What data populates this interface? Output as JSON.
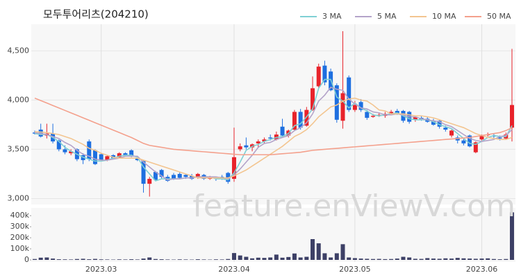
{
  "chart_data": {
    "type": "candlestick",
    "title": "모두투어리츠(204210)",
    "watermark": "feature.enViewV.com",
    "categories": [
      null,
      null,
      null,
      null,
      null,
      null,
      null,
      null,
      null,
      null,
      null,
      "2023.03",
      null,
      null,
      null,
      null,
      null,
      null,
      null,
      null,
      null,
      null,
      null,
      null,
      null,
      null,
      null,
      null,
      null,
      null,
      null,
      null,
      null,
      "2023.04",
      null,
      null,
      null,
      null,
      null,
      null,
      null,
      null,
      null,
      null,
      null,
      null,
      null,
      null,
      null,
      null,
      null,
      null,
      null,
      "2023.05",
      null,
      null,
      null,
      null,
      null,
      null,
      null,
      null,
      null,
      null,
      null,
      null,
      null,
      null,
      null,
      null,
      null,
      null,
      null,
      null,
      "2023.06",
      null,
      null,
      null,
      null,
      null
    ],
    "ohlc": [
      [
        3670,
        3690,
        3650,
        3660
      ],
      [
        3700,
        3760,
        3620,
        3630
      ],
      [
        3640,
        3760,
        3610,
        3660
      ],
      [
        3660,
        3760,
        3560,
        3580
      ],
      [
        3590,
        3600,
        3480,
        3500
      ],
      [
        3500,
        3540,
        3450,
        3470
      ],
      [
        3460,
        3500,
        3440,
        3480
      ],
      [
        3500,
        3510,
        3380,
        3400
      ],
      [
        3440,
        3460,
        3350,
        3390
      ],
      [
        3580,
        3600,
        3380,
        3400
      ],
      [
        3490,
        3500,
        3340,
        3350
      ],
      [
        3450,
        3460,
        3380,
        3390
      ],
      [
        3390,
        3440,
        3380,
        3430
      ],
      [
        3440,
        3450,
        3400,
        3410
      ],
      [
        3420,
        3470,
        3410,
        3460
      ],
      [
        3460,
        3470,
        3430,
        3440
      ],
      [
        3490,
        3500,
        3420,
        3430
      ],
      [
        3410,
        3420,
        3380,
        3390
      ],
      [
        3380,
        3390,
        3060,
        3150
      ],
      [
        3150,
        3220,
        3020,
        3200
      ],
      [
        3270,
        3280,
        3180,
        3190
      ],
      [
        3290,
        3300,
        3200,
        3220
      ],
      [
        3220,
        3240,
        3170,
        3180
      ],
      [
        3240,
        3260,
        3190,
        3200
      ],
      [
        3250,
        3270,
        3200,
        3210
      ],
      [
        3240,
        3250,
        3200,
        3220
      ],
      [
        3230,
        3250,
        3190,
        3200
      ],
      [
        3220,
        3260,
        3200,
        3250
      ],
      [
        3240,
        3250,
        3190,
        3200
      ],
      [
        3200,
        3230,
        3190,
        3210
      ],
      [
        3210,
        3220,
        3180,
        3200
      ],
      [
        3220,
        3240,
        3190,
        3200
      ],
      [
        3260,
        3270,
        3150,
        3170
      ],
      [
        3200,
        3720,
        3170,
        3420
      ],
      [
        3500,
        3560,
        3480,
        3530
      ],
      [
        3540,
        3620,
        3500,
        3520
      ],
      [
        3520,
        3560,
        3480,
        3550
      ],
      [
        3560,
        3600,
        3520,
        3580
      ],
      [
        3580,
        3620,
        3560,
        3600
      ],
      [
        3620,
        3650,
        3590,
        3610
      ],
      [
        3600,
        3680,
        3590,
        3650
      ],
      [
        3730,
        3810,
        3630,
        3640
      ],
      [
        3640,
        3700,
        3620,
        3690
      ],
      [
        3700,
        3900,
        3690,
        3880
      ],
      [
        3880,
        3910,
        3700,
        3720
      ],
      [
        3740,
        3930,
        3730,
        3900
      ],
      [
        3900,
        4240,
        3890,
        4120
      ],
      [
        4140,
        4370,
        4120,
        4340
      ],
      [
        4350,
        4400,
        4150,
        4180
      ],
      [
        4290,
        4320,
        4090,
        4100
      ],
      [
        4150,
        4170,
        3770,
        3800
      ],
      [
        3790,
        4700,
        3710,
        4070
      ],
      [
        4230,
        4250,
        3880,
        3900
      ],
      [
        3900,
        3990,
        3880,
        3950
      ],
      [
        3980,
        4010,
        3880,
        3900
      ],
      [
        3880,
        3900,
        3800,
        3820
      ],
      [
        3830,
        3860,
        3820,
        3840
      ],
      [
        3850,
        3870,
        3830,
        3850
      ],
      [
        3840,
        3880,
        3820,
        3860
      ],
      [
        3860,
        3900,
        3850,
        3880
      ],
      [
        3890,
        3910,
        3850,
        3860
      ],
      [
        3890,
        3900,
        3770,
        3790
      ],
      [
        3880,
        3890,
        3760,
        3780
      ],
      [
        3800,
        3840,
        3780,
        3830
      ],
      [
        3820,
        3840,
        3790,
        3800
      ],
      [
        3810,
        3830,
        3770,
        3780
      ],
      [
        3790,
        3810,
        3740,
        3750
      ],
      [
        3790,
        3800,
        3710,
        3730
      ],
      [
        3720,
        3740,
        3680,
        3700
      ],
      [
        3640,
        3700,
        3620,
        3690
      ],
      [
        3620,
        3640,
        3560,
        3590
      ],
      [
        3590,
        3610,
        3540,
        3560
      ],
      [
        3640,
        3650,
        3520,
        3530
      ],
      [
        3470,
        3580,
        3460,
        3570
      ],
      [
        3600,
        3650,
        3590,
        3640
      ],
      [
        3650,
        3670,
        3630,
        3650
      ],
      [
        3640,
        3660,
        3610,
        3630
      ],
      [
        3620,
        3640,
        3590,
        3610
      ],
      [
        3610,
        3670,
        3600,
        3650
      ],
      [
        3720,
        4520,
        3580,
        3950
      ]
    ],
    "up_color": "#e8232b",
    "down_color": "#1e6fe0",
    "volume": [
      8000,
      20000,
      22000,
      12000,
      6000,
      5000,
      4000,
      8000,
      10000,
      6000,
      9000,
      5000,
      4000,
      3000,
      5000,
      4000,
      6000,
      4000,
      12000,
      22000,
      8000,
      6000,
      4000,
      3000,
      5000,
      4000,
      3000,
      6000,
      4000,
      3000,
      5000,
      4000,
      8000,
      62000,
      40000,
      28000,
      14000,
      20000,
      18000,
      22000,
      48000,
      20000,
      26000,
      58000,
      22000,
      28000,
      188000,
      150000,
      60000,
      22000,
      60000,
      142000,
      22000,
      16000,
      12000,
      10000,
      8000,
      9000,
      7000,
      8000,
      12000,
      28000,
      22000,
      10000,
      9000,
      16000,
      12000,
      10000,
      14000,
      12000,
      18000,
      14000,
      12000,
      10000,
      12000,
      14000,
      8000,
      6000,
      8000,
      430000
    ],
    "volume_color": "#3d4066",
    "series": [
      {
        "name": "3 MA",
        "color": "#7fd0d4",
        "values": [
          3660,
          3650,
          3650,
          3620,
          3580,
          3520,
          3480,
          3450,
          3420,
          3400,
          3380,
          3380,
          3390,
          3410,
          3430,
          3440,
          3440,
          3420,
          3320,
          3250,
          3180,
          3200,
          3200,
          3200,
          3200,
          3210,
          3210,
          3220,
          3220,
          3220,
          3200,
          3200,
          3190,
          3260,
          3370,
          3490,
          3530,
          3550,
          3580,
          3600,
          3620,
          3630,
          3660,
          3740,
          3760,
          3830,
          3910,
          4120,
          4210,
          4210,
          4030,
          3990,
          3920,
          3970,
          3920,
          3890,
          3850,
          3840,
          3850,
          3860,
          3870,
          3840,
          3810,
          3800,
          3800,
          3800,
          3780,
          3750,
          3730,
          3710,
          3660,
          3610,
          3560,
          3550,
          3580,
          3620,
          3640,
          3630,
          3630,
          3740
        ]
      },
      {
        "name": "5 MA",
        "color": "#b4a3c9",
        "values": [
          3670,
          3660,
          3650,
          3630,
          3610,
          3570,
          3540,
          3490,
          3450,
          3430,
          3400,
          3390,
          3390,
          3400,
          3410,
          3430,
          3430,
          3430,
          3370,
          3320,
          3270,
          3230,
          3190,
          3200,
          3200,
          3210,
          3210,
          3220,
          3220,
          3220,
          3220,
          3210,
          3200,
          3240,
          3300,
          3370,
          3440,
          3520,
          3560,
          3570,
          3600,
          3620,
          3640,
          3690,
          3720,
          3770,
          3860,
          3990,
          4050,
          4130,
          4110,
          4100,
          4010,
          3960,
          3920,
          3910,
          3880,
          3870,
          3850,
          3850,
          3860,
          3850,
          3830,
          3830,
          3810,
          3800,
          3790,
          3780,
          3750,
          3730,
          3690,
          3650,
          3610,
          3590,
          3580,
          3590,
          3600,
          3630,
          3640,
          3700
        ]
      },
      {
        "name": "10 MA",
        "color": "#f3c590",
        "values": [
          3680,
          3675,
          3670,
          3660,
          3650,
          3630,
          3610,
          3580,
          3550,
          3510,
          3490,
          3460,
          3440,
          3420,
          3410,
          3410,
          3410,
          3410,
          3390,
          3370,
          3350,
          3330,
          3310,
          3290,
          3270,
          3250,
          3230,
          3210,
          3210,
          3210,
          3210,
          3210,
          3210,
          3230,
          3260,
          3290,
          3330,
          3370,
          3410,
          3450,
          3490,
          3530,
          3580,
          3630,
          3660,
          3700,
          3760,
          3830,
          3880,
          3930,
          3950,
          3990,
          4010,
          4020,
          4000,
          3990,
          3950,
          3900,
          3890,
          3860,
          3860,
          3860,
          3850,
          3840,
          3840,
          3830,
          3820,
          3800,
          3780,
          3760,
          3740,
          3720,
          3690,
          3660,
          3640,
          3620,
          3610,
          3600,
          3600,
          3620
        ]
      },
      {
        "name": "50 MA",
        "color": "#f4a08c",
        "values": [
          4020,
          3995,
          3970,
          3945,
          3920,
          3895,
          3870,
          3845,
          3820,
          3795,
          3770,
          3745,
          3720,
          3695,
          3670,
          3645,
          3620,
          3590,
          3560,
          3540,
          3530,
          3520,
          3510,
          3500,
          3495,
          3490,
          3485,
          3480,
          3475,
          3470,
          3465,
          3460,
          3455,
          3450,
          3445,
          3445,
          3445,
          3445,
          3445,
          3445,
          3450,
          3455,
          3460,
          3465,
          3470,
          3480,
          3490,
          3495,
          3500,
          3505,
          3510,
          3515,
          3520,
          3525,
          3530,
          3535,
          3540,
          3545,
          3550,
          3555,
          3560,
          3565,
          3570,
          3575,
          3580,
          3585,
          3590,
          3595,
          3600,
          3605,
          3610,
          3615,
          3620,
          3630,
          3640,
          3650,
          3660,
          3670,
          3690,
          3720
        ]
      }
    ],
    "ylim": [
      2940,
      4770
    ],
    "yticks": [
      {
        "value": 3000,
        "label": "3,000"
      },
      {
        "value": 3500,
        "label": "3,500"
      },
      {
        "value": 4000,
        "label": "4,000"
      },
      {
        "value": 4500,
        "label": "4,500"
      }
    ],
    "volume_ylim": [
      0,
      470000
    ],
    "volume_yticks": [
      0,
      {
        "value": 100000,
        "label": "100k"
      },
      {
        "value": 200000,
        "label": "200k"
      },
      {
        "value": 300000,
        "label": "300k"
      },
      {
        "value": 400000,
        "label": "400k"
      }
    ],
    "grid": true
  }
}
